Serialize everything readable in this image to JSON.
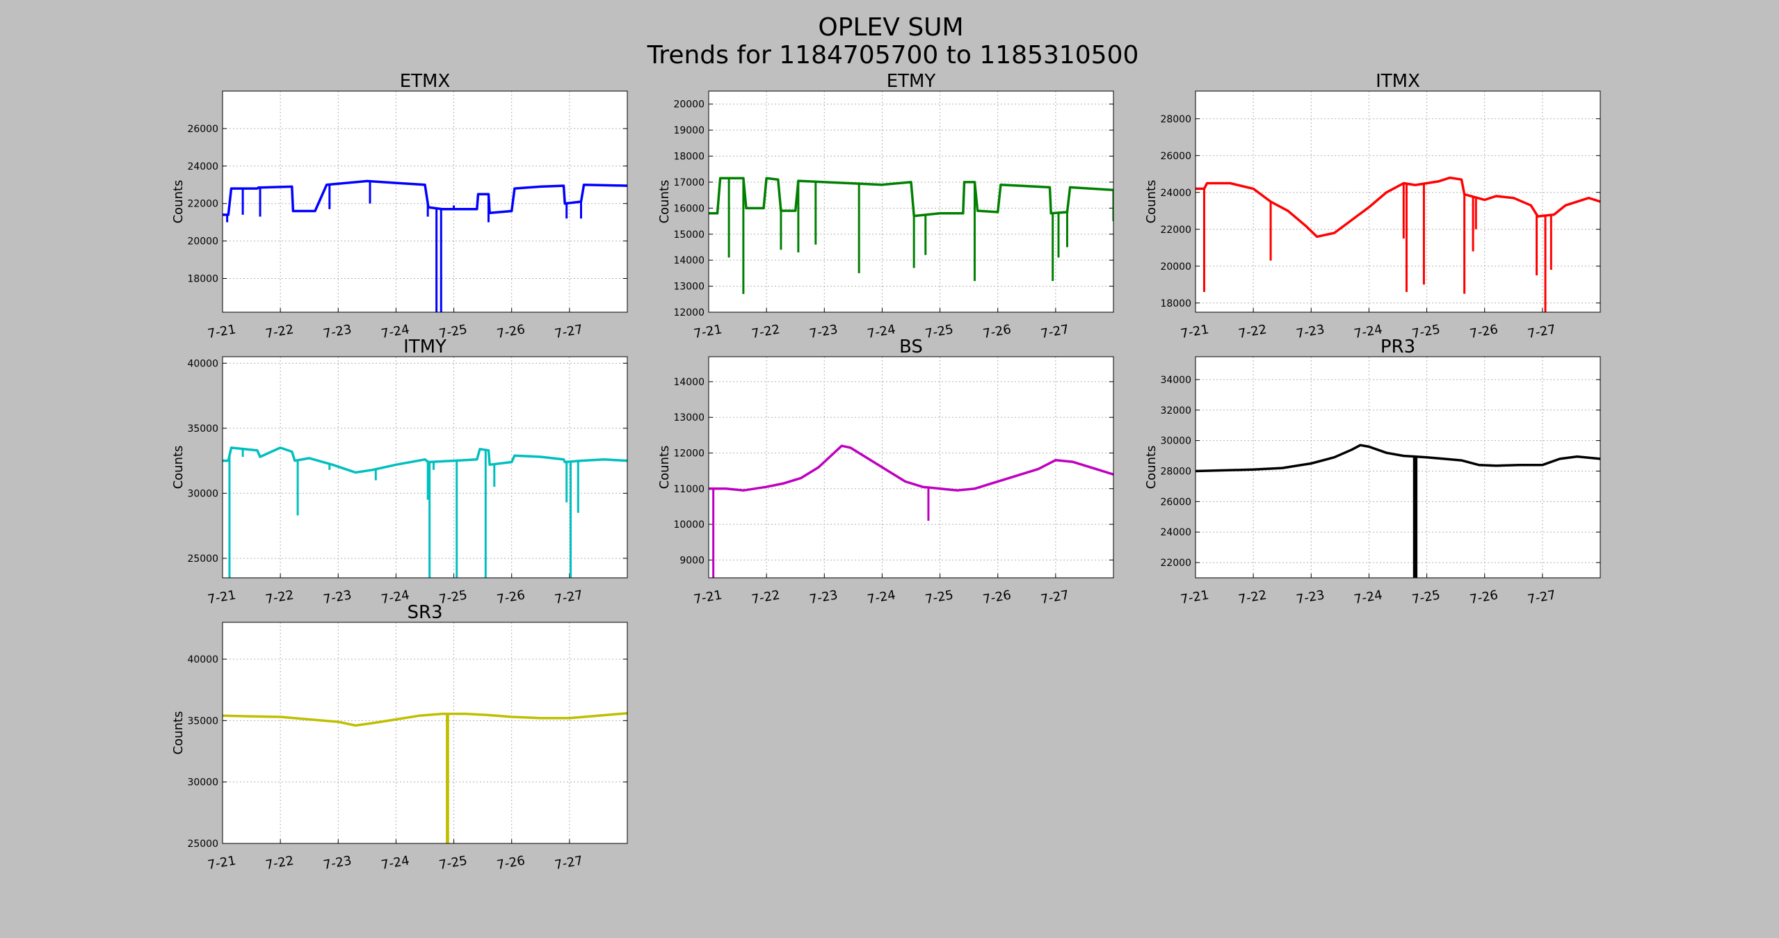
{
  "figure": {
    "title_line1": "OPLEV SUM",
    "title_line2": "Trends for 1184705700 to 1185310500",
    "background": "#bfbfbf"
  },
  "chart_data": [
    {
      "type": "line",
      "title": "ETMX",
      "ylabel": "Counts",
      "xlabel": "",
      "color": "#0000ff",
      "grid": true,
      "ylim": [
        16200,
        28000
      ],
      "yticks": [
        18000,
        20000,
        22000,
        24000,
        26000
      ],
      "xticks": [
        "7-21",
        "7-22",
        "7-23",
        "7-24",
        "7-25",
        "7-26",
        "7-27"
      ],
      "xlim_days": [
        0,
        7
      ],
      "baseline": [
        [
          0,
          21400
        ],
        [
          0.1,
          21400
        ],
        [
          0.15,
          22800
        ],
        [
          0.6,
          22800
        ],
        [
          0.62,
          22850
        ],
        [
          1.2,
          22900
        ],
        [
          1.22,
          21600
        ],
        [
          1.6,
          21600
        ],
        [
          1.8,
          23000
        ],
        [
          2.5,
          23200
        ],
        [
          3.0,
          23100
        ],
        [
          3.5,
          23000
        ],
        [
          3.56,
          21800
        ],
        [
          3.8,
          21700
        ],
        [
          4.4,
          21700
        ],
        [
          4.42,
          22500
        ],
        [
          4.6,
          22500
        ],
        [
          4.62,
          21500
        ],
        [
          5.0,
          21600
        ],
        [
          5.05,
          22800
        ],
        [
          5.5,
          22900
        ],
        [
          5.9,
          22950
        ],
        [
          5.92,
          22000
        ],
        [
          6.2,
          22100
        ],
        [
          6.25,
          23000
        ],
        [
          7,
          22950
        ]
      ],
      "spikes": [
        [
          0.08,
          21000
        ],
        [
          0.35,
          21400
        ],
        [
          0.65,
          21300
        ],
        [
          1.85,
          21700
        ],
        [
          2.55,
          22000
        ],
        [
          3.55,
          21300
        ],
        [
          3.7,
          16200
        ],
        [
          3.78,
          16200
        ],
        [
          4.0,
          21900
        ],
        [
          4.6,
          21000
        ],
        [
          5.95,
          21200
        ],
        [
          6.2,
          21200
        ]
      ]
    },
    {
      "type": "line",
      "title": "ETMY",
      "ylabel": "Counts",
      "xlabel": "",
      "color": "#008000",
      "grid": true,
      "ylim": [
        12000,
        20500
      ],
      "yticks": [
        12000,
        13000,
        14000,
        15000,
        16000,
        17000,
        18000,
        19000,
        20000
      ],
      "xticks": [
        "7-21",
        "7-22",
        "7-23",
        "7-24",
        "7-25",
        "7-26",
        "7-27"
      ],
      "xlim_days": [
        0,
        7
      ],
      "baseline": [
        [
          0,
          15800
        ],
        [
          0.15,
          15800
        ],
        [
          0.2,
          17150
        ],
        [
          0.6,
          17150
        ],
        [
          0.65,
          16000
        ],
        [
          0.95,
          16000
        ],
        [
          1.0,
          17150
        ],
        [
          1.2,
          17100
        ],
        [
          1.25,
          15900
        ],
        [
          1.5,
          15900
        ],
        [
          1.55,
          17050
        ],
        [
          2.0,
          17000
        ],
        [
          2.5,
          16950
        ],
        [
          3.0,
          16900
        ],
        [
          3.5,
          17000
        ],
        [
          3.55,
          15700
        ],
        [
          4.0,
          15800
        ],
        [
          4.4,
          15800
        ],
        [
          4.42,
          17000
        ],
        [
          4.6,
          17000
        ],
        [
          4.65,
          15900
        ],
        [
          5.0,
          15850
        ],
        [
          5.05,
          16900
        ],
        [
          5.5,
          16850
        ],
        [
          5.9,
          16800
        ],
        [
          5.92,
          15800
        ],
        [
          6.2,
          15850
        ],
        [
          6.25,
          16800
        ],
        [
          7,
          16700
        ]
      ],
      "spikes": [
        [
          0.35,
          14100
        ],
        [
          0.6,
          12700
        ],
        [
          1.25,
          14400
        ],
        [
          1.55,
          14300
        ],
        [
          1.85,
          14600
        ],
        [
          2.6,
          13500
        ],
        [
          3.55,
          13700
        ],
        [
          3.75,
          14200
        ],
        [
          4.6,
          13200
        ],
        [
          5.95,
          13200
        ],
        [
          6.05,
          14100
        ],
        [
          6.2,
          14500
        ],
        [
          7.0,
          15500
        ]
      ]
    },
    {
      "type": "line",
      "title": "ITMX",
      "ylabel": "Counts",
      "xlabel": "",
      "color": "#ff0000",
      "grid": true,
      "ylim": [
        17500,
        29500
      ],
      "yticks": [
        18000,
        20000,
        22000,
        24000,
        26000,
        28000
      ],
      "xticks": [
        "7-21",
        "7-22",
        "7-23",
        "7-24",
        "7-25",
        "7-26",
        "7-27"
      ],
      "xlim_days": [
        0,
        7
      ],
      "baseline": [
        [
          0,
          24200
        ],
        [
          0.15,
          24200
        ],
        [
          0.2,
          24500
        ],
        [
          0.6,
          24500
        ],
        [
          1.0,
          24200
        ],
        [
          1.3,
          23500
        ],
        [
          1.6,
          23000
        ],
        [
          1.9,
          22200
        ],
        [
          2.1,
          21600
        ],
        [
          2.4,
          21800
        ],
        [
          2.7,
          22500
        ],
        [
          3.0,
          23200
        ],
        [
          3.3,
          24000
        ],
        [
          3.6,
          24500
        ],
        [
          3.8,
          24400
        ],
        [
          4.0,
          24500
        ],
        [
          4.2,
          24600
        ],
        [
          4.4,
          24800
        ],
        [
          4.6,
          24700
        ],
        [
          4.65,
          23900
        ],
        [
          5.0,
          23600
        ],
        [
          5.2,
          23800
        ],
        [
          5.5,
          23700
        ],
        [
          5.8,
          23300
        ],
        [
          5.92,
          22700
        ],
        [
          6.2,
          22800
        ],
        [
          6.4,
          23300
        ],
        [
          6.8,
          23700
        ],
        [
          7,
          23500
        ]
      ],
      "spikes": [
        [
          0.15,
          18600
        ],
        [
          1.3,
          20300
        ],
        [
          3.6,
          21500
        ],
        [
          3.65,
          18600
        ],
        [
          3.95,
          19000
        ],
        [
          4.65,
          18500
        ],
        [
          4.8,
          20800
        ],
        [
          4.85,
          22000
        ],
        [
          5.9,
          19500
        ],
        [
          6.05,
          17500
        ],
        [
          6.15,
          19800
        ]
      ]
    },
    {
      "type": "line",
      "title": "ITMY",
      "ylabel": "Counts",
      "xlabel": "",
      "color": "#00bfbf",
      "grid": true,
      "ylim": [
        23500,
        40500
      ],
      "yticks": [
        25000,
        30000,
        35000,
        40000
      ],
      "xticks": [
        "7-21",
        "7-22",
        "7-23",
        "7-24",
        "7-25",
        "7-26",
        "7-27"
      ],
      "xlim_days": [
        0,
        7
      ],
      "baseline": [
        [
          0,
          32500
        ],
        [
          0.1,
          32500
        ],
        [
          0.15,
          33500
        ],
        [
          0.6,
          33300
        ],
        [
          0.65,
          32800
        ],
        [
          1.0,
          33500
        ],
        [
          1.2,
          33200
        ],
        [
          1.25,
          32500
        ],
        [
          1.5,
          32700
        ],
        [
          1.9,
          32200
        ],
        [
          2.3,
          31600
        ],
        [
          2.6,
          31800
        ],
        [
          3.0,
          32200
        ],
        [
          3.5,
          32600
        ],
        [
          3.56,
          32400
        ],
        [
          4.0,
          32500
        ],
        [
          4.4,
          32600
        ],
        [
          4.45,
          33400
        ],
        [
          4.6,
          33300
        ],
        [
          4.62,
          32200
        ],
        [
          5.0,
          32400
        ],
        [
          5.05,
          32900
        ],
        [
          5.5,
          32800
        ],
        [
          5.9,
          32600
        ],
        [
          5.92,
          32400
        ],
        [
          6.2,
          32500
        ],
        [
          6.6,
          32600
        ],
        [
          7,
          32500
        ]
      ],
      "spikes": [
        [
          0.12,
          23500
        ],
        [
          0.35,
          32800
        ],
        [
          1.3,
          28300
        ],
        [
          1.85,
          31800
        ],
        [
          2.65,
          31000
        ],
        [
          3.55,
          29500
        ],
        [
          3.58,
          23500
        ],
        [
          3.65,
          31800
        ],
        [
          4.05,
          23500
        ],
        [
          4.55,
          23500
        ],
        [
          4.7,
          30500
        ],
        [
          5.95,
          29300
        ],
        [
          6.02,
          23500
        ],
        [
          6.15,
          28500
        ]
      ]
    },
    {
      "type": "line",
      "title": "BS",
      "ylabel": "Counts",
      "xlabel": "",
      "color": "#bf00bf",
      "grid": true,
      "ylim": [
        8500,
        14700
      ],
      "yticks": [
        9000,
        10000,
        11000,
        12000,
        13000,
        14000
      ],
      "xticks": [
        "7-21",
        "7-22",
        "7-23",
        "7-24",
        "7-25",
        "7-26",
        "7-27"
      ],
      "xlim_days": [
        0,
        7
      ],
      "baseline": [
        [
          0,
          11000
        ],
        [
          0.3,
          11000
        ],
        [
          0.6,
          10950
        ],
        [
          1.0,
          11050
        ],
        [
          1.3,
          11150
        ],
        [
          1.6,
          11300
        ],
        [
          1.9,
          11600
        ],
        [
          2.1,
          11900
        ],
        [
          2.3,
          12200
        ],
        [
          2.45,
          12150
        ],
        [
          2.8,
          11800
        ],
        [
          3.1,
          11500
        ],
        [
          3.4,
          11200
        ],
        [
          3.7,
          11050
        ],
        [
          4.0,
          11000
        ],
        [
          4.3,
          10950
        ],
        [
          4.6,
          11000
        ],
        [
          4.9,
          11150
        ],
        [
          5.3,
          11350
        ],
        [
          5.7,
          11550
        ],
        [
          6.0,
          11800
        ],
        [
          6.3,
          11750
        ],
        [
          6.7,
          11550
        ],
        [
          7,
          11400
        ]
      ],
      "spikes": [
        [
          0.08,
          8500
        ],
        [
          3.8,
          10100
        ]
      ]
    },
    {
      "type": "line",
      "title": "PR3",
      "ylabel": "Counts",
      "xlabel": "",
      "color": "#000000",
      "grid": true,
      "ylim": [
        21000,
        35500
      ],
      "yticks": [
        22000,
        24000,
        26000,
        28000,
        30000,
        32000,
        34000
      ],
      "xticks": [
        "7-21",
        "7-22",
        "7-23",
        "7-24",
        "7-25",
        "7-26",
        "7-27"
      ],
      "xlim_days": [
        0,
        7
      ],
      "baseline": [
        [
          0,
          28000
        ],
        [
          0.5,
          28050
        ],
        [
          1.0,
          28100
        ],
        [
          1.5,
          28200
        ],
        [
          2.0,
          28500
        ],
        [
          2.4,
          28900
        ],
        [
          2.7,
          29400
        ],
        [
          2.85,
          29700
        ],
        [
          3.0,
          29600
        ],
        [
          3.3,
          29200
        ],
        [
          3.6,
          29000
        ],
        [
          3.8,
          28950
        ],
        [
          4.0,
          28900
        ],
        [
          4.3,
          28800
        ],
        [
          4.6,
          28700
        ],
        [
          4.9,
          28400
        ],
        [
          5.2,
          28350
        ],
        [
          5.6,
          28400
        ],
        [
          6.0,
          28400
        ],
        [
          6.3,
          28800
        ],
        [
          6.6,
          28950
        ],
        [
          7,
          28800
        ]
      ],
      "spikes": [
        [
          3.78,
          21000
        ],
        [
          3.8,
          21000
        ],
        [
          3.82,
          21000
        ]
      ]
    },
    {
      "type": "line",
      "title": "SR3",
      "ylabel": "Counts",
      "xlabel": "",
      "color": "#bfbf00",
      "grid": true,
      "ylim": [
        25000,
        43000
      ],
      "yticks": [
        25000,
        30000,
        35000,
        40000
      ],
      "xticks": [
        "7-21",
        "7-22",
        "7-23",
        "7-24",
        "7-25",
        "7-26",
        "7-27"
      ],
      "xlim_days": [
        0,
        7
      ],
      "baseline": [
        [
          0,
          35400
        ],
        [
          0.5,
          35350
        ],
        [
          1.0,
          35300
        ],
        [
          1.5,
          35100
        ],
        [
          2.0,
          34900
        ],
        [
          2.3,
          34600
        ],
        [
          2.6,
          34800
        ],
        [
          3.0,
          35100
        ],
        [
          3.4,
          35400
        ],
        [
          3.8,
          35550
        ],
        [
          4.2,
          35550
        ],
        [
          4.6,
          35450
        ],
        [
          5.0,
          35300
        ],
        [
          5.5,
          35200
        ],
        [
          6.0,
          35200
        ],
        [
          6.5,
          35400
        ],
        [
          7,
          35600
        ]
      ],
      "spikes": [
        [
          3.88,
          25000
        ],
        [
          3.9,
          25000
        ]
      ]
    }
  ]
}
